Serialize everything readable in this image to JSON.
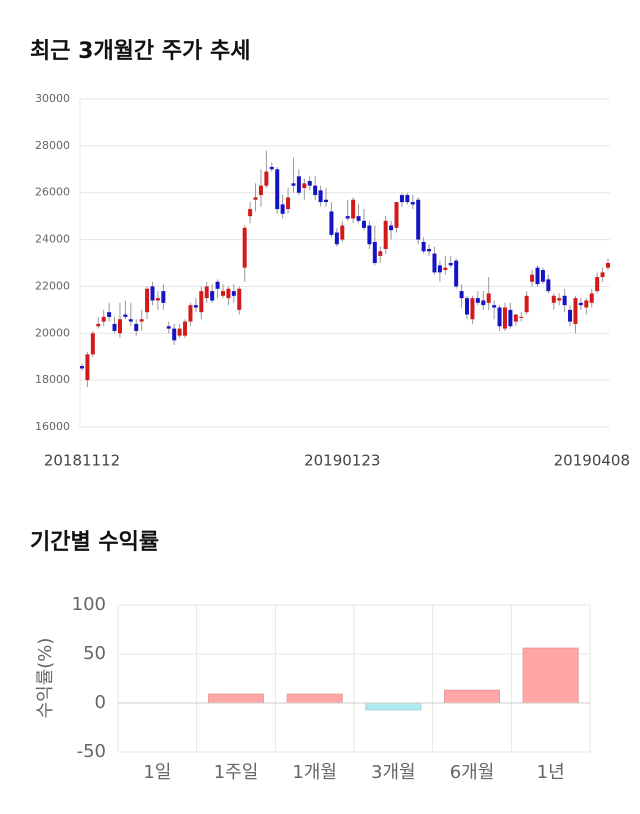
{
  "chart_data": [
    {
      "type": "candlestick",
      "title": "최근 3개월간 주가 추세",
      "categories": [
        "20181112",
        null,
        null,
        null,
        null,
        null,
        null,
        null,
        null,
        null,
        null,
        null,
        null,
        null,
        null,
        null,
        null,
        null,
        null,
        null,
        null,
        null,
        null,
        null,
        null,
        null,
        null,
        null,
        null,
        null,
        null,
        null,
        null,
        null,
        null,
        null,
        null,
        null,
        null,
        null,
        null,
        null,
        null,
        null,
        null,
        null,
        null,
        null,
        "20190123",
        null,
        null,
        null,
        null,
        null,
        null,
        null,
        null,
        null,
        null,
        null,
        null,
        null,
        null,
        null,
        null,
        null,
        null,
        null,
        null,
        null,
        null,
        null,
        null,
        null,
        null,
        null,
        null,
        null,
        null,
        null,
        null,
        null,
        null,
        null,
        null,
        null,
        null,
        null,
        null,
        null,
        null,
        null,
        null,
        null,
        null,
        null,
        null,
        "20190408"
      ],
      "open": [
        18600,
        18000,
        19100,
        20300,
        20500,
        20900,
        20400,
        20000,
        20800,
        20600,
        20400,
        20500,
        20900,
        22000,
        21400,
        21800,
        20300,
        20200,
        19900,
        19900,
        20500,
        21200,
        20900,
        21500,
        21800,
        22200,
        21600,
        21500,
        21800,
        21000,
        22800,
        25000,
        25700,
        25900,
        26300,
        27100,
        27000,
        25500,
        25300,
        26400,
        26700,
        26200,
        26500,
        26300,
        26100,
        25700,
        25200,
        24300,
        24000,
        25000,
        24900,
        25000,
        24800,
        24600,
        23900,
        23300,
        23600,
        24600,
        24500,
        25900,
        25900,
        25600,
        25700,
        23900,
        23600,
        23400,
        22900,
        22700,
        23000,
        23100,
        21800,
        21500,
        20600,
        21500,
        21400,
        21300,
        21200,
        21100,
        20200,
        21000,
        20500,
        20700,
        20900,
        22200,
        22800,
        22700,
        22300,
        21300,
        21400,
        21600,
        21000,
        20400,
        21300,
        21100,
        21300,
        21800,
        22400,
        22800
      ],
      "high": [
        18700,
        19200,
        20100,
        20700,
        21000,
        21300,
        20700,
        21300,
        21400,
        21300,
        20600,
        21000,
        22000,
        22200,
        21800,
        22100,
        20500,
        20400,
        20400,
        20600,
        21300,
        21500,
        22000,
        22200,
        22100,
        22300,
        22100,
        22000,
        22100,
        22000,
        24600,
        25600,
        26400,
        27000,
        27800,
        27300,
        27100,
        25900,
        26200,
        27500,
        27000,
        26600,
        26700,
        26700,
        26300,
        26200,
        25600,
        24500,
        24800,
        25700,
        25800,
        25500,
        25300,
        24800,
        24600,
        23700,
        25000,
        24800,
        25600,
        26000,
        26000,
        25900,
        25800,
        24100,
        23800,
        23700,
        23100,
        23300,
        23300,
        23200,
        22100,
        21600,
        21600,
        21800,
        21800,
        22400,
        21400,
        21200,
        21300,
        21300,
        20800,
        20900,
        21800,
        22700,
        22900,
        22800,
        22500,
        21700,
        21700,
        21900,
        21200,
        21600,
        21500,
        21500,
        21900,
        22600,
        22800,
        23200
      ],
      "low": [
        18400,
        17700,
        19000,
        20200,
        20300,
        20500,
        20000,
        19800,
        20600,
        20300,
        19900,
        20100,
        20600,
        21200,
        21000,
        21000,
        20000,
        19500,
        19800,
        19800,
        20300,
        20900,
        20600,
        21300,
        21300,
        21500,
        21500,
        21200,
        21300,
        20800,
        22200,
        24700,
        25200,
        25400,
        26200,
        26900,
        25100,
        24900,
        25100,
        26000,
        25900,
        25700,
        26100,
        25700,
        25400,
        25400,
        24100,
        23700,
        23900,
        24800,
        24700,
        24700,
        24400,
        23600,
        22900,
        23000,
        23400,
        24000,
        24300,
        25400,
        25500,
        25300,
        23800,
        23400,
        23300,
        22500,
        22200,
        22500,
        22800,
        21900,
        21100,
        20600,
        20400,
        21200,
        21000,
        21000,
        20600,
        20100,
        20100,
        20200,
        20300,
        20500,
        20800,
        22000,
        22000,
        22100,
        21700,
        21000,
        21200,
        20900,
        20300,
        20000,
        21000,
        20800,
        21100,
        21700,
        22200,
        22700
      ],
      "close": [
        18500,
        19100,
        20000,
        20400,
        20700,
        20700,
        20100,
        20600,
        20700,
        20500,
        20100,
        20600,
        21900,
        21400,
        21500,
        21300,
        20200,
        19700,
        20200,
        20500,
        21200,
        21100,
        21800,
        22000,
        21400,
        21900,
        21800,
        21900,
        21600,
        21900,
        24500,
        25300,
        25800,
        26300,
        26900,
        27000,
        25300,
        25100,
        25800,
        26300,
        26000,
        26400,
        26300,
        25900,
        25600,
        25600,
        24200,
        23800,
        24600,
        24900,
        25700,
        24800,
        24500,
        23800,
        23000,
        23500,
        24800,
        24400,
        25600,
        25600,
        25600,
        25500,
        24000,
        23500,
        23500,
        22600,
        22600,
        22800,
        22900,
        22000,
        21500,
        20800,
        21500,
        21300,
        21200,
        21700,
        21100,
        20300,
        21100,
        20300,
        20800,
        20700,
        21600,
        22500,
        22100,
        22200,
        21800,
        21600,
        21500,
        21200,
        20500,
        21500,
        21200,
        21400,
        21700,
        22400,
        22600,
        23000
      ],
      "up_color": "#d21a1a",
      "down_color": "#1414c4",
      "ylim": [
        16000,
        30000
      ],
      "yticks": [
        16000,
        18000,
        20000,
        22000,
        24000,
        26000,
        28000,
        30000
      ],
      "grid": true
    },
    {
      "type": "bar",
      "title": "기간별 수익률",
      "y_label": "수익률(%)",
      "categories": [
        "1일",
        "1주일",
        "1개월",
        "3개월",
        "6개월",
        "1년"
      ],
      "values": [
        0,
        9,
        9,
        -7,
        13,
        56
      ],
      "positive_color": "#ffa6a6",
      "negative_color": "#aeeaf0",
      "ylim": [
        -50,
        100
      ],
      "yticks": [
        -50,
        0,
        50,
        100
      ],
      "grid": true
    }
  ]
}
